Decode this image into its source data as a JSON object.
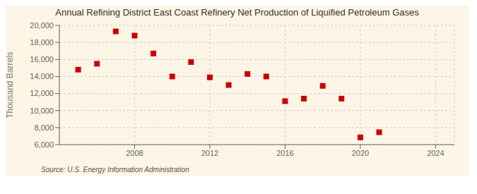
{
  "chart_data": {
    "type": "scatter",
    "title": "Annual Refining District East Coast Refinery Net Production of Liquified Petroleum Gases",
    "y_label": "Thousand Barrels",
    "annotations": [
      "Source: U.S. Energy Information Administration"
    ],
    "x": [
      2005,
      2006,
      2007,
      2008,
      2009,
      2010,
      2011,
      2012,
      2013,
      2014,
      2015,
      2016,
      2017,
      2018,
      2019,
      2020,
      2021
    ],
    "values": [
      14800,
      15500,
      19300,
      18800,
      16700,
      14000,
      15700,
      13900,
      13000,
      14300,
      14000,
      11100,
      11400,
      12900,
      11400,
      6850,
      7450
    ],
    "color": "#cc0000",
    "marker": "square",
    "xlim": [
      2004,
      2025
    ],
    "xticks": [
      2008,
      2012,
      2016,
      2020,
      2024
    ],
    "ylim": [
      6000,
      20000
    ],
    "yticks": [
      {
        "value": 6000,
        "label": "6,000"
      },
      {
        "value": 8000,
        "label": "8,000"
      },
      {
        "value": 10000,
        "label": "10,000"
      },
      {
        "value": 12000,
        "label": "12,000"
      },
      {
        "value": 14000,
        "label": "14,000"
      },
      {
        "value": 16000,
        "label": "16,000"
      },
      {
        "value": 18000,
        "label": "18,000"
      },
      {
        "value": 20000,
        "label": "20,000"
      }
    ],
    "grid": true
  }
}
